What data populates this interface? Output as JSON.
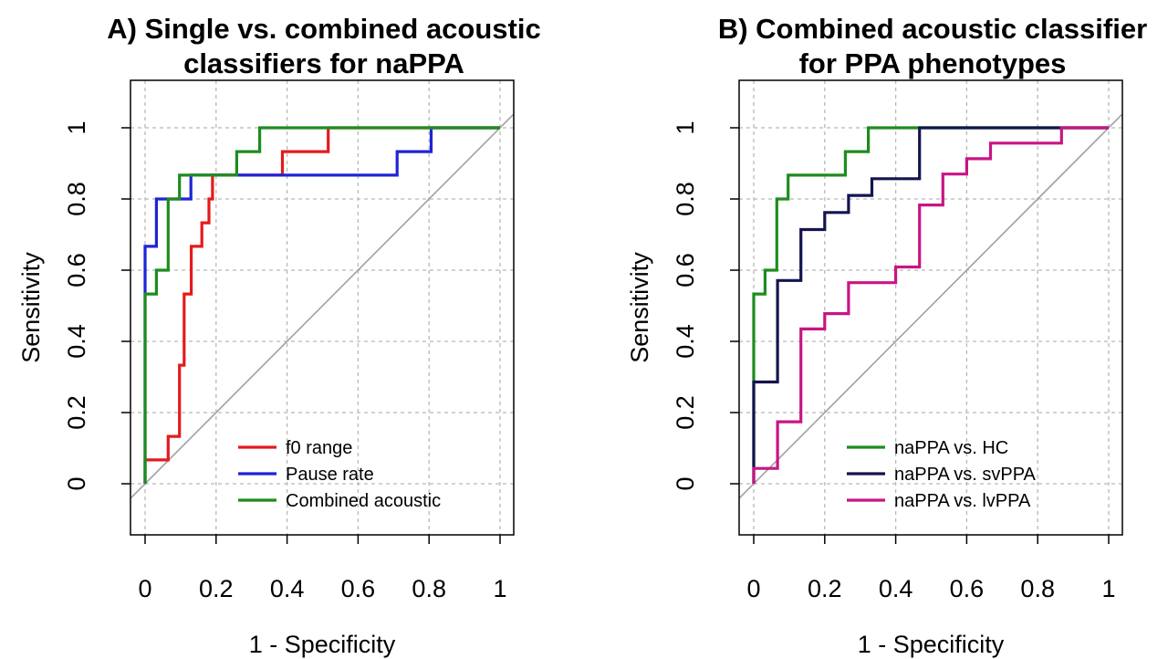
{
  "chart_data": [
    {
      "type": "line",
      "panel": "A",
      "title_line1": "A) Single vs. combined acoustic",
      "title_line2": "classifiers for naPPA",
      "xlabel": "1 - Specificity",
      "ylabel": "Sensitivity",
      "xlim": [
        0,
        1
      ],
      "ylim": [
        0,
        1
      ],
      "xticks": [
        "0",
        "0.2",
        "0.4",
        "0.6",
        "0.8",
        "1"
      ],
      "yticks": [
        "0",
        "0.2",
        "0.4",
        "0.6",
        "0.8",
        "1"
      ],
      "grid": true,
      "legend_position": "bottom-right",
      "reference_line": "diagonal",
      "series": [
        {
          "name": "f0 range",
          "color": "#e41a1c",
          "x": [
            0,
            0,
            0.065,
            0.065,
            0.097,
            0.097,
            0.11,
            0.11,
            0.13,
            0.13,
            0.16,
            0.16,
            0.18,
            0.18,
            0.19,
            0.19,
            0.387,
            0.387,
            0.516,
            0.516,
            1
          ],
          "y": [
            0,
            0.067,
            0.067,
            0.133,
            0.133,
            0.333,
            0.333,
            0.533,
            0.533,
            0.667,
            0.667,
            0.733,
            0.733,
            0.8,
            0.8,
            0.867,
            0.867,
            0.933,
            0.933,
            1,
            1
          ]
        },
        {
          "name": "Pause rate",
          "color": "#1f24d6",
          "x": [
            0,
            0,
            0.032,
            0.032,
            0.129,
            0.129,
            0.71,
            0.71,
            0.806,
            0.806,
            1
          ],
          "y": [
            0,
            0.667,
            0.667,
            0.8,
            0.8,
            0.867,
            0.867,
            0.933,
            0.933,
            1,
            1
          ]
        },
        {
          "name": "Combined acoustic",
          "color": "#1e8c1e",
          "x": [
            0,
            0,
            0.032,
            0.032,
            0.065,
            0.065,
            0.097,
            0.097,
            0.258,
            0.258,
            0.323,
            0.323,
            1
          ],
          "y": [
            0,
            0.533,
            0.533,
            0.6,
            0.6,
            0.8,
            0.8,
            0.867,
            0.867,
            0.933,
            0.933,
            1,
            1
          ]
        }
      ]
    },
    {
      "type": "line",
      "panel": "B",
      "title_line1": "B) Combined acoustic classifier",
      "title_line2": "for PPA phenotypes",
      "xlabel": "1 - Specificity",
      "ylabel": "Sensitivity",
      "xlim": [
        0,
        1
      ],
      "ylim": [
        0,
        1
      ],
      "xticks": [
        "0",
        "0.2",
        "0.4",
        "0.6",
        "0.8",
        "1"
      ],
      "yticks": [
        "0",
        "0.2",
        "0.4",
        "0.6",
        "0.8",
        "1"
      ],
      "grid": true,
      "legend_position": "bottom-right",
      "reference_line": "diagonal",
      "series": [
        {
          "name": "naPPA vs. HC",
          "color": "#1e8c1e",
          "x": [
            0,
            0,
            0.032,
            0.032,
            0.065,
            0.065,
            0.097,
            0.097,
            0.258,
            0.258,
            0.323,
            0.323,
            1
          ],
          "y": [
            0,
            0.533,
            0.533,
            0.6,
            0.6,
            0.8,
            0.8,
            0.867,
            0.867,
            0.933,
            0.933,
            1,
            1
          ]
        },
        {
          "name": "naPPA vs. svPPA",
          "color": "#141450",
          "x": [
            0,
            0,
            0.067,
            0.067,
            0.133,
            0.133,
            0.2,
            0.2,
            0.267,
            0.267,
            0.333,
            0.333,
            0.467,
            0.467,
            1
          ],
          "y": [
            0,
            0.286,
            0.286,
            0.571,
            0.571,
            0.714,
            0.714,
            0.762,
            0.762,
            0.81,
            0.81,
            0.857,
            0.857,
            1,
            1
          ]
        },
        {
          "name": "naPPA vs. lvPPA",
          "color": "#c71585",
          "x": [
            0,
            0,
            0.067,
            0.067,
            0.133,
            0.133,
            0.2,
            0.2,
            0.267,
            0.267,
            0.4,
            0.4,
            0.467,
            0.467,
            0.533,
            0.533,
            0.6,
            0.6,
            0.667,
            0.667,
            0.867,
            0.867,
            1
          ],
          "y": [
            0,
            0.043,
            0.043,
            0.174,
            0.174,
            0.435,
            0.435,
            0.478,
            0.478,
            0.565,
            0.565,
            0.609,
            0.609,
            0.783,
            0.783,
            0.87,
            0.87,
            0.913,
            0.913,
            0.957,
            0.957,
            1,
            1
          ]
        }
      ]
    }
  ]
}
